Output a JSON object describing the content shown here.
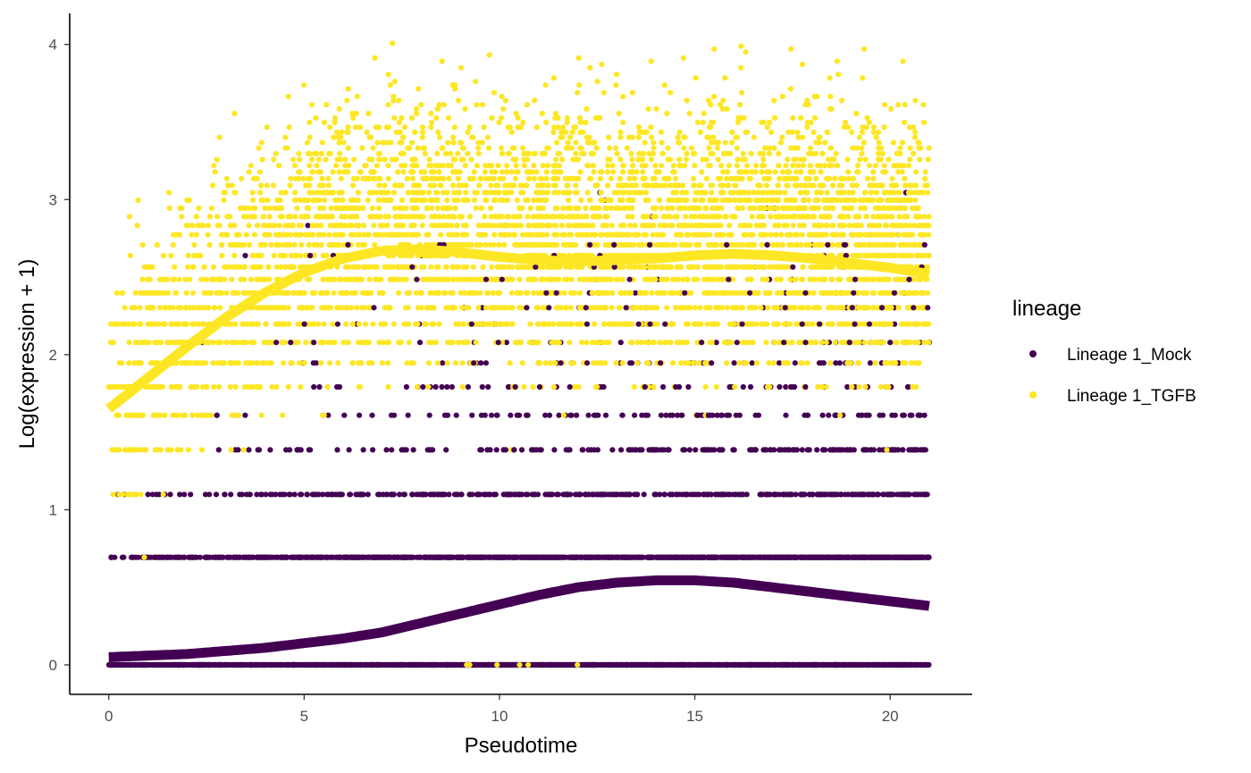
{
  "chart_data": {
    "type": "scatter",
    "xlabel": "Pseudotime",
    "ylabel": "Log(expression + 1)",
    "xlim": [
      -1,
      22.1
    ],
    "ylim": [
      -0.19,
      4.2
    ],
    "x_ticks": [
      0,
      5,
      10,
      15,
      20
    ],
    "y_ticks": [
      0,
      1,
      2,
      3,
      4
    ],
    "grid": false,
    "legend": {
      "title": "lineage",
      "position": "right",
      "entries": [
        {
          "label": "Lineage 1_Mock",
          "color": "#440154"
        },
        {
          "label": "Lineage 1_TGFB",
          "color": "#FDE725"
        }
      ]
    },
    "point_levels": [
      0,
      0.693,
      1.099,
      1.386,
      1.609,
      1.792,
      1.946,
      2.079,
      2.197,
      2.303,
      2.398,
      2.485,
      2.565,
      2.639,
      2.708,
      2.773,
      2.833,
      2.89,
      2.944,
      2.996,
      3.045,
      3.091,
      3.135,
      3.178,
      3.219,
      3.258,
      3.296,
      3.332,
      3.367,
      3.401,
      3.434,
      3.466,
      3.497,
      3.526,
      3.555,
      3.584,
      3.611,
      3.638,
      3.664,
      3.689,
      3.714,
      3.738,
      3.761,
      3.784,
      3.807,
      3.829,
      3.85,
      3.871,
      3.892,
      3.912,
      3.932,
      3.951,
      3.97,
      3.989,
      4.007
    ],
    "series": [
      {
        "name": "Lineage 1_Mock",
        "color": "#440154",
        "x_range": [
          0,
          21
        ],
        "smoother": {
          "x": [
            0,
            1,
            2,
            3,
            4,
            5,
            6,
            7,
            8,
            9,
            10,
            11,
            12,
            13,
            14,
            15,
            16,
            17,
            18,
            19,
            20,
            21
          ],
          "y": [
            0.05,
            0.06,
            0.07,
            0.09,
            0.11,
            0.14,
            0.17,
            0.21,
            0.27,
            0.33,
            0.39,
            0.45,
            0.5,
            0.53,
            0.545,
            0.545,
            0.53,
            0.5,
            0.47,
            0.44,
            0.41,
            0.38
          ]
        }
      },
      {
        "name": "Lineage 1_TGFB",
        "color": "#FDE725",
        "x_range": [
          0,
          21
        ],
        "smoother": {
          "x": [
            0,
            1,
            2,
            3,
            4,
            5,
            6,
            7,
            8,
            9,
            10,
            11,
            12,
            13,
            14,
            15,
            16,
            17,
            18,
            19,
            20,
            21
          ],
          "y": [
            1.65,
            1.85,
            2.05,
            2.24,
            2.4,
            2.53,
            2.62,
            2.67,
            2.68,
            2.66,
            2.63,
            2.61,
            2.6,
            2.61,
            2.62,
            2.64,
            2.65,
            2.64,
            2.62,
            2.59,
            2.56,
            2.52
          ]
        }
      }
    ]
  }
}
